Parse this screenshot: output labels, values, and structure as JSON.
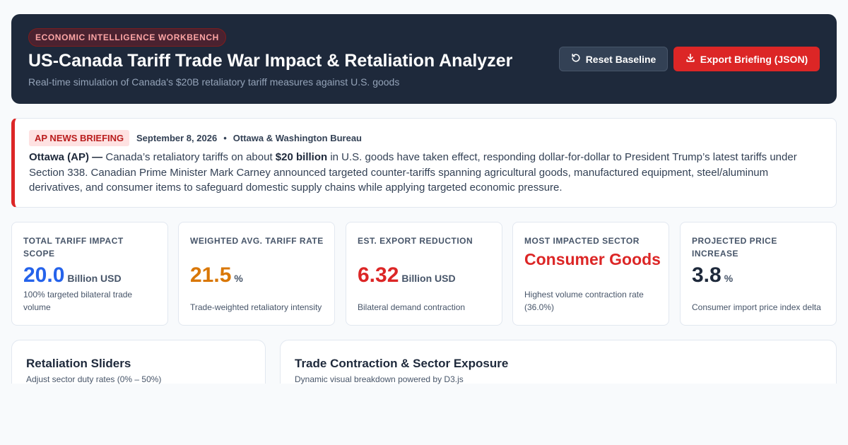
{
  "header": {
    "tag": "ECONOMIC INTELLIGENCE WORKBENCH",
    "title": "US-Canada Tariff Trade War Impact & Retaliation Analyzer",
    "subtitle": "Real-time simulation of Canada's $20B retaliatory tariff measures against U.S. goods",
    "reset_label": "Reset Baseline",
    "export_label": "Export Briefing (JSON)",
    "reset_icon": "refresh-icon",
    "export_icon": "download-icon"
  },
  "news": {
    "badge": "AP NEWS BRIEFING",
    "date": "September 8, 2026",
    "separator": "•",
    "bureau": "Ottawa & Washington Bureau",
    "dateline": "Ottawa (AP) —",
    "text_1": "Canada’s retaliatory tariffs on about",
    "amount": "$20 billion",
    "text_2": "in U.S. goods have taken effect, responding dollar-for-dollar to President Trump’s latest tariffs under Section 338. Canadian Prime Minister Mark Carney announced targeted counter-tariffs spanning agricultural goods, manufactured equipment, steel/aluminum derivatives, and consumer items to safeguard domestic supply chains while applying targeted economic pressure."
  },
  "kpis": [
    {
      "label": "Total Tariff Impact Scope",
      "value": "20.0",
      "unit": "Billion USD",
      "desc": "100% targeted bilateral trade volume",
      "color": "#2563eb"
    },
    {
      "label": "Weighted Avg. Tariff Rate",
      "value": "21.5",
      "unit": "%",
      "desc": "Trade-weighted retaliatory intensity",
      "color": "#d97706"
    },
    {
      "label": "Est. Export Reduction",
      "value": "6.32",
      "unit": "Billion USD",
      "desc": "Bilateral demand contraction",
      "color": "#dc2626"
    },
    {
      "label": "Most Impacted Sector",
      "value": "Consumer Goods",
      "desc": "Highest volume contraction rate (36.0%)",
      "color": "#dc2626"
    },
    {
      "label": "Projected Price Increase",
      "value": "3.8",
      "unit": "%",
      "desc": "Consumer import price index delta",
      "color": "#1e293b"
    }
  ],
  "panels": {
    "sliders": {
      "title": "Retaliation Sliders",
      "subtitle": "Adjust sector duty rates (0% – 50%)"
    },
    "chart": {
      "title": "Trade Contraction & Sector Exposure",
      "subtitle": "Dynamic visual breakdown powered by D3.js"
    }
  }
}
